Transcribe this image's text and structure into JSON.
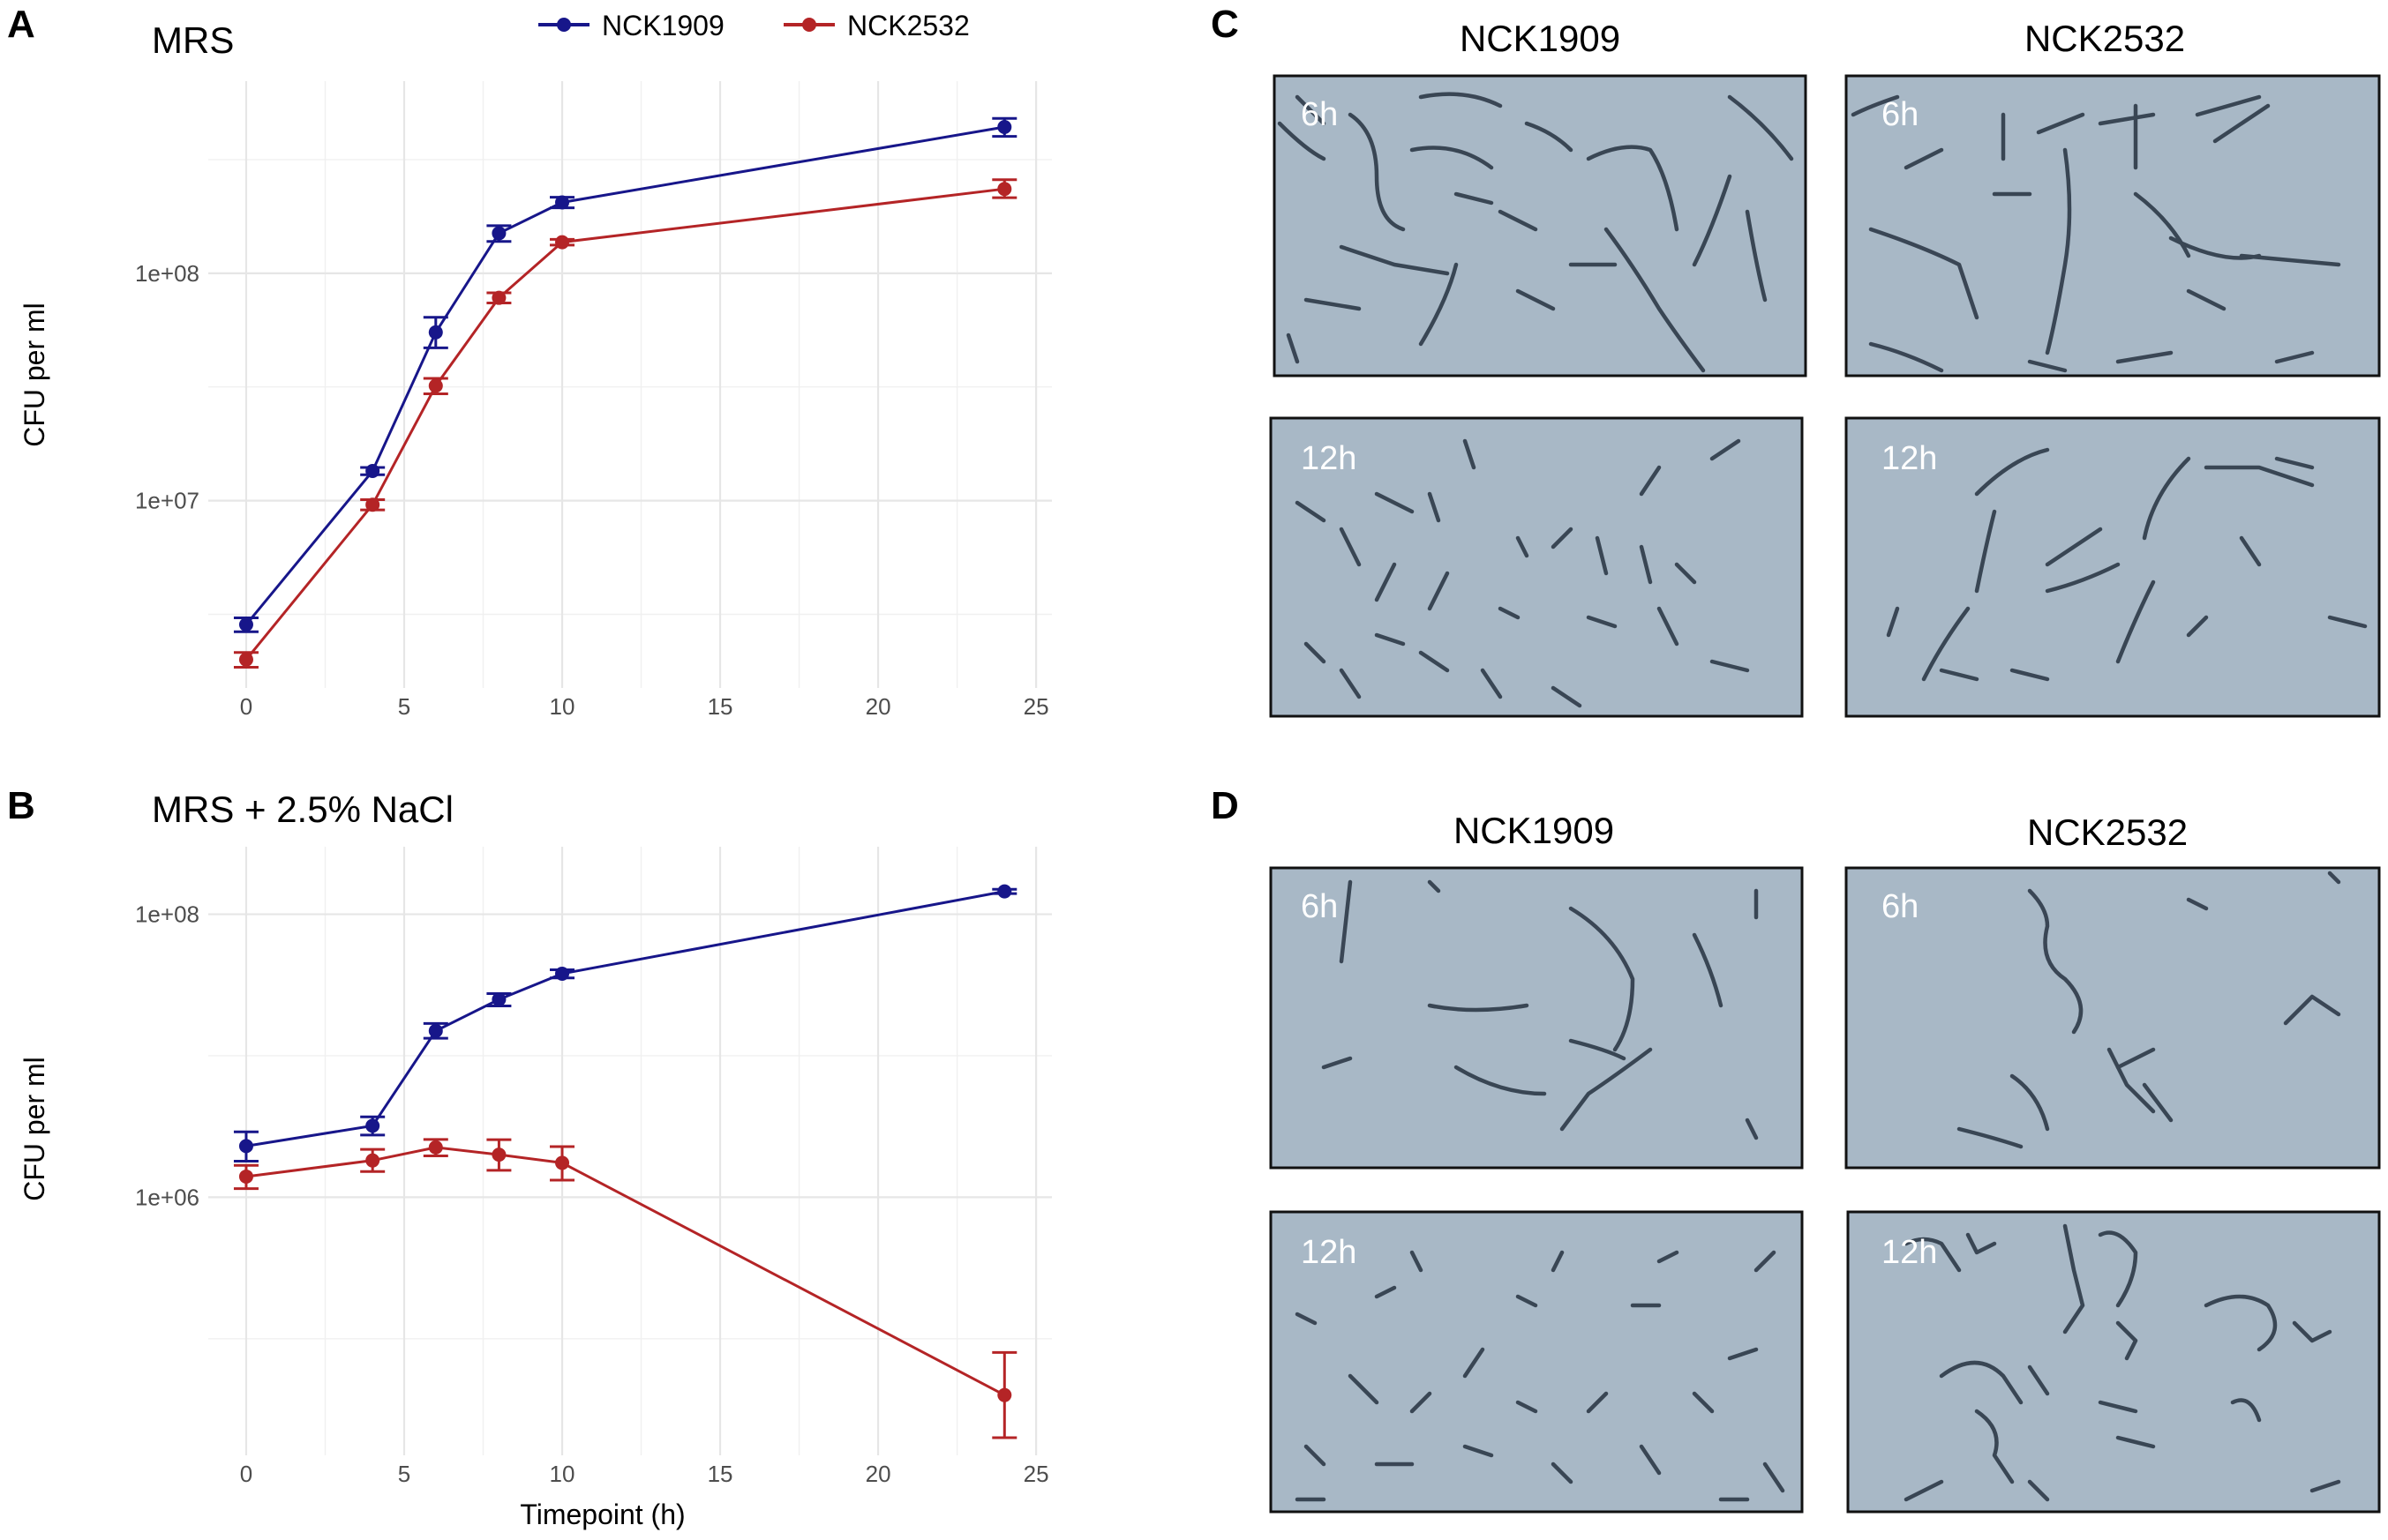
{
  "panels": {
    "A": "A",
    "B": "B",
    "C": "C",
    "D": "D"
  },
  "legend": {
    "entries": [
      {
        "name": "NCK1909",
        "color": "#17168a"
      },
      {
        "name": "NCK2532",
        "color": "#b42426"
      }
    ]
  },
  "colors": {
    "NCK1909": "#17168a",
    "NCK2532": "#b42426",
    "grid": "#e6e6e6"
  },
  "chart_data": [
    {
      "type": "line",
      "panel": "A",
      "title": "MRS",
      "xlabel": "",
      "ylabel": "CFU per ml",
      "yscale": "log10",
      "xlim": [
        -1.2,
        25.5
      ],
      "ylim": [
        1500000,
        700000000
      ],
      "x_ticks": [
        0,
        5,
        10,
        15,
        20,
        25
      ],
      "y_ticks": [
        {
          "value": 10000000,
          "label": "1e+07"
        },
        {
          "value": 100000000,
          "label": "1e+08"
        }
      ],
      "y_minor": [
        3162277.66,
        31622776.6,
        316227766
      ],
      "grid": true,
      "series": [
        {
          "name": "NCK1909",
          "x": [
            0,
            4,
            6,
            8,
            10,
            24
          ],
          "y": [
            2850000,
            13500000,
            55000000,
            150000000,
            205000000,
            440000000
          ],
          "err_low": [
            2650000,
            13000000,
            47000000,
            138000000,
            194000000,
            400000000
          ],
          "err_high": [
            3050000,
            14000000,
            64000000,
            162000000,
            216000000,
            480000000
          ]
        },
        {
          "name": "NCK2532",
          "x": [
            0,
            4,
            6,
            8,
            10,
            24
          ],
          "y": [
            2000000,
            9600000,
            32000000,
            78000000,
            137000000,
            235000000
          ],
          "err_low": [
            1850000,
            9100000,
            29500000,
            74000000,
            133000000,
            215000000
          ],
          "err_high": [
            2150000,
            10100000,
            34500000,
            82000000,
            141000000,
            258000000
          ]
        }
      ]
    },
    {
      "type": "line",
      "panel": "B",
      "title": "MRS + 2.5% NaCl",
      "xlabel": "Timepoint (h)",
      "ylabel": "CFU per ml",
      "yscale": "log10",
      "xlim": [
        -1.2,
        25.5
      ],
      "ylim": [
        15000,
        300000000
      ],
      "x_ticks": [
        0,
        5,
        10,
        15,
        20,
        25
      ],
      "y_ticks": [
        {
          "value": 1000000,
          "label": "1e+06"
        },
        {
          "value": 100000000,
          "label": "1e+08"
        }
      ],
      "y_minor": [
        100000,
        10000000
      ],
      "grid": true,
      "series": [
        {
          "name": "NCK1909",
          "x": [
            0,
            4,
            6,
            8,
            10,
            24
          ],
          "y": [
            2300000,
            3200000,
            15000000,
            25000000,
            38000000,
            145000000
          ],
          "err_low": [
            1800000,
            2750000,
            13300000,
            22500000,
            35500000,
            140000000
          ],
          "err_high": [
            2900000,
            3700000,
            16900000,
            27500000,
            40500000,
            150000000
          ]
        },
        {
          "name": "NCK2532",
          "x": [
            0,
            4,
            6,
            8,
            10,
            24
          ],
          "y": [
            1400000,
            1820000,
            2250000,
            2000000,
            1750000,
            40000
          ],
          "err_low": [
            1150000,
            1520000,
            1960000,
            1550000,
            1320000,
            20000
          ],
          "err_high": [
            1680000,
            2180000,
            2560000,
            2550000,
            2280000,
            80000
          ]
        }
      ]
    }
  ],
  "micrographs": {
    "C": {
      "columns": [
        "NCK1909",
        "NCK2532"
      ],
      "rows": [
        "6h",
        "12h"
      ]
    },
    "D": {
      "columns": [
        "NCK1909",
        "NCK2532"
      ],
      "rows": [
        "6h",
        "12h"
      ]
    }
  }
}
